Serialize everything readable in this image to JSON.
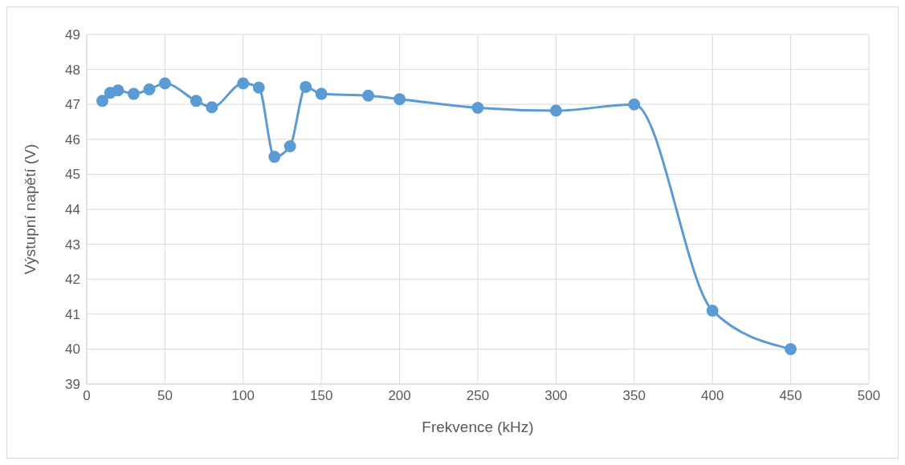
{
  "chart_data": {
    "type": "line",
    "xlabel": "Frekvence (kHz)",
    "ylabel": "Výstupní napětí (V)",
    "x": [
      10,
      15,
      20,
      30,
      40,
      50,
      70,
      80,
      100,
      110,
      120,
      130,
      140,
      150,
      180,
      200,
      250,
      300,
      350,
      400,
      450
    ],
    "series": [
      {
        "color": "#5b9bd5",
        "values": [
          47.1,
          47.33,
          47.4,
          47.3,
          47.43,
          47.6,
          47.1,
          46.92,
          47.6,
          47.48,
          45.5,
          45.8,
          47.5,
          47.3,
          47.25,
          47.15,
          46.9,
          46.82,
          47.0,
          41.1,
          40.0
        ]
      }
    ],
    "xlim": [
      0,
      500
    ],
    "xticks": [
      0,
      50,
      100,
      150,
      200,
      250,
      300,
      350,
      400,
      450,
      500
    ],
    "ylim": [
      39,
      49
    ],
    "yticks": [
      39,
      40,
      41,
      42,
      43,
      44,
      45,
      46,
      47,
      48,
      49
    ],
    "grid": true,
    "legend": false,
    "marker": "circle",
    "line_style": "solid"
  }
}
